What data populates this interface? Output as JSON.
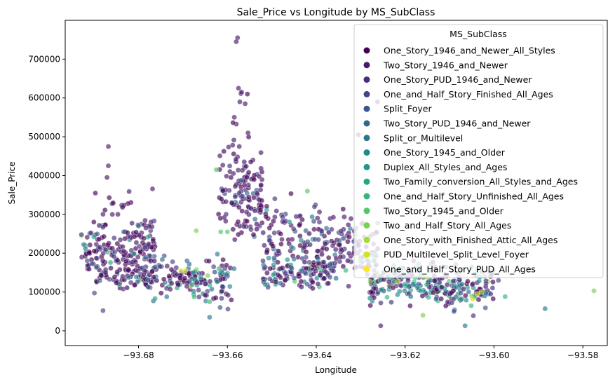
{
  "chart_data": {
    "type": "scatter",
    "title": "Sale_Price vs Longitude by MS_SubClass",
    "xlabel": "Longitude",
    "ylabel": "Sale_Price",
    "xlim": [
      -93.6965,
      -93.5745
    ],
    "ylim": [
      -38000,
      800000
    ],
    "xticks": [
      -93.68,
      -93.66,
      -93.64,
      -93.62,
      -93.6,
      -93.58
    ],
    "xtick_labels": [
      "−93.68",
      "−93.66",
      "−93.64",
      "−93.62",
      "−93.60",
      "−93.58"
    ],
    "yticks": [
      0,
      100000,
      200000,
      300000,
      400000,
      500000,
      600000,
      700000
    ],
    "ytick_labels": [
      "0",
      "100000",
      "200000",
      "300000",
      "400000",
      "500000",
      "600000",
      "700000"
    ],
    "grid": false,
    "legend_title": "MS_SubClass",
    "legend_position": "upper-right",
    "marker_alpha": 0.65,
    "series": [
      {
        "name": "One_Story_1946_and_Newer_All_Styles",
        "color": "#440154"
      },
      {
        "name": "Two_Story_1946_and_Newer",
        "color": "#481a6c"
      },
      {
        "name": "One_Story_PUD_1946_and_Newer",
        "color": "#472f7d"
      },
      {
        "name": "One_and_Half_Story_Finished_All_Ages",
        "color": "#414487"
      },
      {
        "name": "Split_Foyer",
        "color": "#39568c"
      },
      {
        "name": "Two_Story_PUD_1946_and_Newer",
        "color": "#31688e"
      },
      {
        "name": "Split_or_Multilevel",
        "color": "#2a788e"
      },
      {
        "name": "One_Story_1945_and_Older",
        "color": "#23888e"
      },
      {
        "name": "Duplex_All_Styles_and_Ages",
        "color": "#1f988b"
      },
      {
        "name": "Two_Family_conversion_All_Styles_and_Ages",
        "color": "#22a884"
      },
      {
        "name": "One_and_Half_Story_Unfinished_All_Ages",
        "color": "#35b779"
      },
      {
        "name": "Two_Story_1945_and_Older",
        "color": "#54c568"
      },
      {
        "name": "Two_and_Half_Story_All_Ages",
        "color": "#7ad151"
      },
      {
        "name": "One_Story_with_Finished_Attic_All_Ages",
        "color": "#a5db36"
      },
      {
        "name": "PUD_Multilevel_Split_Level_Foyer",
        "color": "#d2e21b"
      },
      {
        "name": "One_and_Half_Story_PUD_All_Ages",
        "color": "#fde725"
      }
    ],
    "clusters": [
      {
        "x_range": [
          -93.693,
          -93.676
        ],
        "y_center": 200000,
        "y_spread": 40000,
        "count": 170,
        "weights": [
          0.45,
          0.25,
          0.1,
          0.05,
          0.03,
          0.02,
          0.02,
          0.02,
          0.02,
          0.01,
          0.01,
          0.01,
          0.005,
          0.005,
          0,
          0
        ]
      },
      {
        "x_range": [
          -93.69,
          -93.676
        ],
        "y_center": 280000,
        "y_spread": 45000,
        "count": 35,
        "weights": [
          0.3,
          0.6,
          0.05,
          0.05,
          0,
          0,
          0,
          0,
          0,
          0,
          0,
          0,
          0,
          0,
          0,
          0
        ]
      },
      {
        "x_range": [
          -93.69,
          -93.676
        ],
        "y_center": 140000,
        "y_spread": 20000,
        "count": 45,
        "weights": [
          0.35,
          0.1,
          0.15,
          0.1,
          0.08,
          0.05,
          0.05,
          0.04,
          0.04,
          0.02,
          0.01,
          0.01,
          0,
          0,
          0,
          0
        ]
      },
      {
        "x_range": [
          -93.678,
          -93.668
        ],
        "y_center": 140000,
        "y_spread": 25000,
        "count": 70,
        "weights": [
          0.4,
          0.1,
          0.15,
          0.1,
          0.05,
          0.05,
          0.04,
          0.04,
          0.03,
          0.02,
          0.02,
          0,
          0,
          0,
          0.01,
          0
        ]
      },
      {
        "x_range": [
          -93.668,
          -93.659
        ],
        "y_center": 125000,
        "y_spread": 30000,
        "count": 80,
        "weights": [
          0.35,
          0.1,
          0.1,
          0.1,
          0.05,
          0.05,
          0.08,
          0.06,
          0.04,
          0.03,
          0.02,
          0.01,
          0.01,
          0,
          0,
          0
        ]
      },
      {
        "x_range": [
          -93.662,
          -93.652
        ],
        "y_center": 340000,
        "y_spread": 55000,
        "count": 120,
        "weights": [
          0.35,
          0.45,
          0.1,
          0.05,
          0.02,
          0.01,
          0.01,
          0.01,
          0,
          0,
          0,
          0,
          0,
          0,
          0,
          0
        ]
      },
      {
        "x_range": [
          -93.66,
          -93.652
        ],
        "y_center": 480000,
        "y_spread": 60000,
        "count": 20,
        "weights": [
          0.3,
          0.7,
          0,
          0,
          0,
          0,
          0,
          0,
          0,
          0,
          0,
          0,
          0,
          0,
          0,
          0
        ]
      },
      {
        "x_range": [
          -93.652,
          -93.64
        ],
        "y_center": 230000,
        "y_spread": 50000,
        "count": 100,
        "weights": [
          0.3,
          0.3,
          0.15,
          0.1,
          0.05,
          0.04,
          0.02,
          0.02,
          0.01,
          0.01,
          0,
          0,
          0,
          0,
          0,
          0
        ]
      },
      {
        "x_range": [
          -93.652,
          -93.636
        ],
        "y_center": 150000,
        "y_spread": 18000,
        "count": 90,
        "weights": [
          0.3,
          0.1,
          0.1,
          0.1,
          0.1,
          0.1,
          0.05,
          0.05,
          0.03,
          0.02,
          0.02,
          0.02,
          0.01,
          0,
          0,
          0
        ]
      },
      {
        "x_range": [
          -93.64,
          -93.626
        ],
        "y_center": 210000,
        "y_spread": 45000,
        "count": 140,
        "weights": [
          0.35,
          0.3,
          0.12,
          0.08,
          0.04,
          0.04,
          0.02,
          0.02,
          0.01,
          0.01,
          0.01,
          0,
          0,
          0,
          0,
          0
        ]
      },
      {
        "x_range": [
          -93.628,
          -93.612
        ],
        "y_center": 125000,
        "y_spread": 25000,
        "count": 160,
        "weights": [
          0.25,
          0.08,
          0.1,
          0.08,
          0.06,
          0.08,
          0.08,
          0.08,
          0.07,
          0.04,
          0.03,
          0.02,
          0.02,
          0.01,
          0,
          0
        ]
      },
      {
        "x_range": [
          -93.612,
          -93.6
        ],
        "y_center": 115000,
        "y_spread": 25000,
        "count": 110,
        "weights": [
          0.25,
          0.08,
          0.08,
          0.08,
          0.06,
          0.08,
          0.1,
          0.08,
          0.07,
          0.05,
          0.03,
          0.02,
          0.01,
          0.01,
          0,
          0
        ]
      }
    ],
    "extra_points": [
      {
        "x": -93.6577,
        "y": 755000,
        "s": 1
      },
      {
        "x": -93.658,
        "y": 745000,
        "s": 1
      },
      {
        "x": -93.6575,
        "y": 625000,
        "s": 1
      },
      {
        "x": -93.6568,
        "y": 615000,
        "s": 1
      },
      {
        "x": -93.6555,
        "y": 610000,
        "s": 0
      },
      {
        "x": -93.6572,
        "y": 590000,
        "s": 1
      },
      {
        "x": -93.656,
        "y": 585000,
        "s": 1
      },
      {
        "x": -93.6868,
        "y": 475000,
        "s": 1
      },
      {
        "x": -93.6868,
        "y": 425000,
        "s": 1
      },
      {
        "x": -93.6871,
        "y": 395000,
        "s": 1
      },
      {
        "x": -93.6262,
        "y": 590000,
        "s": 0
      },
      {
        "x": -93.6305,
        "y": 505000,
        "s": 0
      },
      {
        "x": -93.6625,
        "y": 415000,
        "s": 11
      },
      {
        "x": -93.642,
        "y": 360000,
        "s": 11
      },
      {
        "x": -93.624,
        "y": 460000,
        "s": 0
      },
      {
        "x": -93.6255,
        "y": 13000,
        "s": 1
      },
      {
        "x": -93.6065,
        "y": 13000,
        "s": 6
      },
      {
        "x": -93.664,
        "y": 35000,
        "s": 6
      },
      {
        "x": -93.6585,
        "y": 160000,
        "s": 6
      },
      {
        "x": -93.667,
        "y": 258000,
        "s": 12
      },
      {
        "x": -93.6705,
        "y": 155000,
        "s": 14
      },
      {
        "x": -93.6695,
        "y": 155000,
        "s": 14
      },
      {
        "x": -93.6615,
        "y": 255000,
        "s": 11
      },
      {
        "x": -93.66,
        "y": 255000,
        "s": 11
      },
      {
        "x": -93.5775,
        "y": 103000,
        "s": 12
      },
      {
        "x": -93.5885,
        "y": 57000,
        "s": 6
      },
      {
        "x": -93.5975,
        "y": 88000,
        "s": 10
      },
      {
        "x": -93.6048,
        "y": 82000,
        "s": 14
      },
      {
        "x": -93.6038,
        "y": 95000,
        "s": 14
      },
      {
        "x": -93.6028,
        "y": 100000,
        "s": 13
      },
      {
        "x": -93.616,
        "y": 40000,
        "s": 12
      },
      {
        "x": -93.688,
        "y": 52000,
        "s": 3
      },
      {
        "x": -93.609,
        "y": 50000,
        "s": 3
      },
      {
        "x": -93.599,
        "y": 130000,
        "s": 3
      },
      {
        "x": -93.605,
        "y": 165000,
        "s": 7
      },
      {
        "x": -93.627,
        "y": 180000,
        "s": 9
      },
      {
        "x": -93.68,
        "y": 270000,
        "s": 6
      }
    ]
  }
}
